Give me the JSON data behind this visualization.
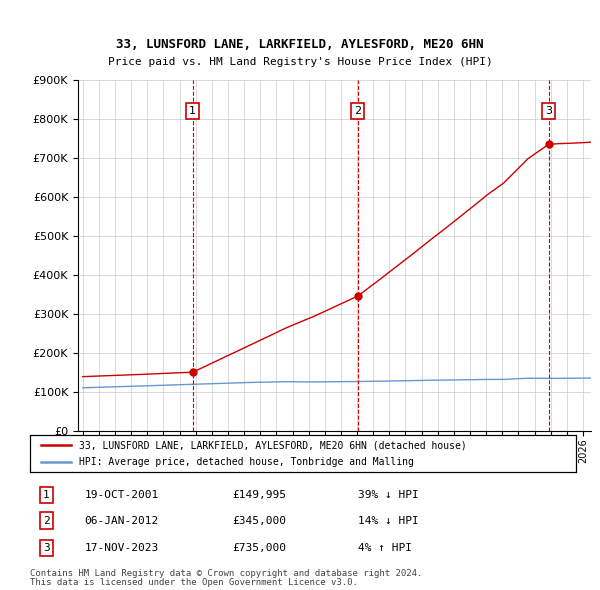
{
  "title": "33, LUNSFORD LANE, LARKFIELD, AYLESFORD, ME20 6HN",
  "subtitle": "Price paid vs. HM Land Registry's House Price Index (HPI)",
  "ylim": [
    0,
    900000
  ],
  "yticks": [
    0,
    100000,
    200000,
    300000,
    400000,
    500000,
    600000,
    700000,
    800000,
    900000
  ],
  "xlim_start": 1994.7,
  "xlim_end": 2026.5,
  "transaction_color": "#cc0000",
  "hpi_color": "#6699cc",
  "grid_color": "#cccccc",
  "transactions": [
    {
      "date_num": 2001.8,
      "price": 149995,
      "label": "1"
    },
    {
      "date_num": 2012.03,
      "price": 345000,
      "label": "2"
    },
    {
      "date_num": 2023.88,
      "price": 735000,
      "label": "3"
    }
  ],
  "transaction_table": [
    {
      "num": "1",
      "date": "19-OCT-2001",
      "price": "£149,995",
      "hpi": "39% ↓ HPI"
    },
    {
      "num": "2",
      "date": "06-JAN-2012",
      "price": "£345,000",
      "hpi": "14% ↓ HPI"
    },
    {
      "num": "3",
      "date": "17-NOV-2023",
      "price": "£735,000",
      "hpi": "4% ↑ HPI"
    }
  ],
  "legend_label_red": "33, LUNSFORD LANE, LARKFIELD, AYLESFORD, ME20 6HN (detached house)",
  "legend_label_blue": "HPI: Average price, detached house, Tonbridge and Malling",
  "footer_line1": "Contains HM Land Registry data © Crown copyright and database right 2024.",
  "footer_line2": "This data is licensed under the Open Government Licence v3.0."
}
